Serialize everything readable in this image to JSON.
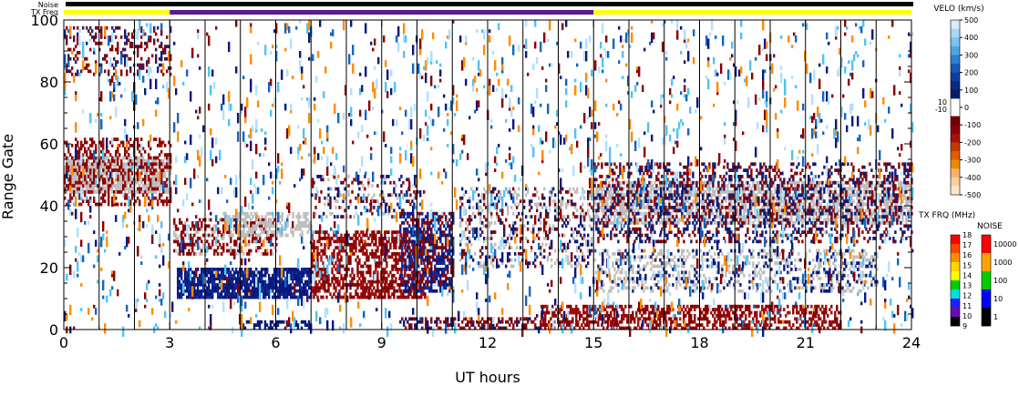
{
  "chart_data": {
    "type": "heatmap",
    "xlabel": "UT hours",
    "ylabel": "Range Gate",
    "xlim": [
      0,
      24
    ],
    "ylim": [
      0,
      100
    ],
    "x_ticks": [
      "0",
      "3",
      "6",
      "9",
      "12",
      "15",
      "18",
      "21",
      "24"
    ],
    "y_ticks": [
      "0",
      "20",
      "40",
      "60",
      "80",
      "100"
    ],
    "bar_labels": {
      "noise": "Noise",
      "txfreq": "TX Freq"
    },
    "noise_bar_color": "#000000",
    "txfreq_segments": [
      {
        "start": 0,
        "end": 3,
        "color": "#ffff00"
      },
      {
        "start": 3,
        "end": 15,
        "color": "#5a1a8c"
      },
      {
        "start": 15,
        "end": 24,
        "color": "#ffff00"
      }
    ],
    "ground_scatter_color": "#bebebe",
    "regions": [
      {
        "kind": "ground",
        "t0": 0.0,
        "t1": 3.0,
        "g0": 44,
        "g1": 56,
        "density": 0.8,
        "colors": [
          "#bebebe"
        ]
      },
      {
        "kind": "mixed",
        "t0": 0.0,
        "t1": 3.0,
        "g0": 40,
        "g1": 62,
        "density": 0.35,
        "colors": [
          "#8b0000",
          "#8b0000",
          "#a01010"
        ]
      },
      {
        "kind": "mixed",
        "t0": 0.0,
        "t1": 3.0,
        "g0": 82,
        "g1": 98,
        "density": 0.22,
        "colors": [
          "#8b0000",
          "#8b0000",
          "#1a237e"
        ]
      },
      {
        "kind": "mixed",
        "t0": 3.1,
        "t1": 6.0,
        "g0": 24,
        "g1": 36,
        "density": 0.45,
        "colors": [
          "#8b0000",
          "#8b0000",
          "#bebebe"
        ]
      },
      {
        "kind": "ground",
        "t0": 4.5,
        "t1": 7.0,
        "g0": 30,
        "g1": 38,
        "density": 0.45,
        "colors": [
          "#bebebe"
        ]
      },
      {
        "kind": "mixed",
        "t0": 3.2,
        "t1": 7.0,
        "g0": 10,
        "g1": 20,
        "density": 0.8,
        "colors": [
          "#0a1a7a",
          "#0a1a7a",
          "#132a9a"
        ]
      },
      {
        "kind": "mixed",
        "t0": 7.0,
        "t1": 10.2,
        "g0": 10,
        "g1": 32,
        "density": 0.55,
        "colors": [
          "#8b0000",
          "#8b0000",
          "#a01010"
        ]
      },
      {
        "kind": "mixed",
        "t0": 9.5,
        "t1": 11.0,
        "g0": 12,
        "g1": 38,
        "density": 0.6,
        "colors": [
          "#0a1a7a",
          "#132a9a",
          "#8b0000"
        ]
      },
      {
        "kind": "mixed",
        "t0": 7.0,
        "t1": 10.0,
        "g0": 36,
        "g1": 50,
        "density": 0.2,
        "colors": [
          "#0a1a7a",
          "#bebebe",
          "#8b0000"
        ]
      },
      {
        "kind": "mixed",
        "t0": 11.2,
        "t1": 15.0,
        "g0": 20,
        "g1": 46,
        "density": 0.28,
        "colors": [
          "#0a1a7a",
          "#bebebe",
          "#bebebe",
          "#8b0000"
        ]
      },
      {
        "kind": "ground",
        "t0": 15.0,
        "t1": 24.0,
        "g0": 34,
        "g1": 48,
        "density": 0.6,
        "colors": [
          "#bebebe"
        ]
      },
      {
        "kind": "mixed",
        "t0": 15.0,
        "t1": 24.0,
        "g0": 28,
        "g1": 54,
        "density": 0.3,
        "colors": [
          "#0a1a7a",
          "#8b0000",
          "#0a1a7a",
          "#8b0000"
        ]
      },
      {
        "kind": "mixed",
        "t0": 15.0,
        "t1": 23.0,
        "g0": 12,
        "g1": 26,
        "density": 0.3,
        "colors": [
          "#bebebe",
          "#0a1a7a",
          "#bebebe"
        ]
      },
      {
        "kind": "mixed",
        "t0": 13.5,
        "t1": 22.0,
        "g0": 0,
        "g1": 8,
        "density": 0.5,
        "colors": [
          "#8b0000",
          "#8b0000",
          "#a01010"
        ]
      },
      {
        "kind": "mixed",
        "t0": 9.5,
        "t1": 13.5,
        "g0": 0,
        "g1": 4,
        "density": 0.5,
        "colors": [
          "#0a1a7a",
          "#8b0000",
          "#8b0000"
        ]
      },
      {
        "kind": "mixed",
        "t0": 5.0,
        "t1": 7.0,
        "g0": 0,
        "g1": 3,
        "density": 0.4,
        "colors": [
          "#0a1a7a"
        ]
      },
      {
        "kind": "noise",
        "t0": 0.0,
        "t1": 24.0,
        "g0": 0,
        "g1": 100,
        "density": 0.04,
        "colors": [
          "#0a1a7a",
          "#8b0000",
          "#4fc3f7",
          "#1565c0",
          "#ff8c00",
          "#b0e0ff"
        ]
      }
    ],
    "velo_colorbar": {
      "title": "VELO (km/s)",
      "labels": [
        "500",
        "400",
        "300",
        "200",
        "100",
        "0",
        "-100",
        "-200",
        "-300",
        "-400",
        "-500"
      ],
      "pos_colors": [
        "#d6ecfa",
        "#a9d8f5",
        "#7cc3ef",
        "#4ea6e0",
        "#2f7fd1",
        "#1a57b8",
        "#103e9c",
        "#0a2a80",
        "#061c66",
        "#ffffff"
      ],
      "neg_colors": [
        "#ffffff",
        "#700000",
        "#8b0000",
        "#a51010",
        "#c03a00",
        "#d95f00",
        "#ee8a00",
        "#f6b26b",
        "#f9cfa0",
        "#fbe6d0"
      ],
      "side_labels": [
        "10",
        "-10"
      ]
    },
    "txfrq_colorbar": {
      "title": "TX FRQ (MHz)",
      "labels": [
        "18",
        "17",
        "16",
        "15",
        "14",
        "13",
        "12",
        "11",
        "10",
        "9"
      ],
      "colors": [
        "#ff0000",
        "#ff4500",
        "#ff8c00",
        "#ffd700",
        "#ffff00",
        "#00cc00",
        "#00e0e0",
        "#1e1eff",
        "#6a0dad",
        "#000000"
      ]
    },
    "noise_colorbar": {
      "title": "NOISE",
      "labels": [
        "10000",
        "1000",
        "100",
        "10",
        "1"
      ],
      "colors": [
        "#ff0000",
        "#ffa500",
        "#00cc00",
        "#0000ff",
        "#000000"
      ]
    }
  }
}
